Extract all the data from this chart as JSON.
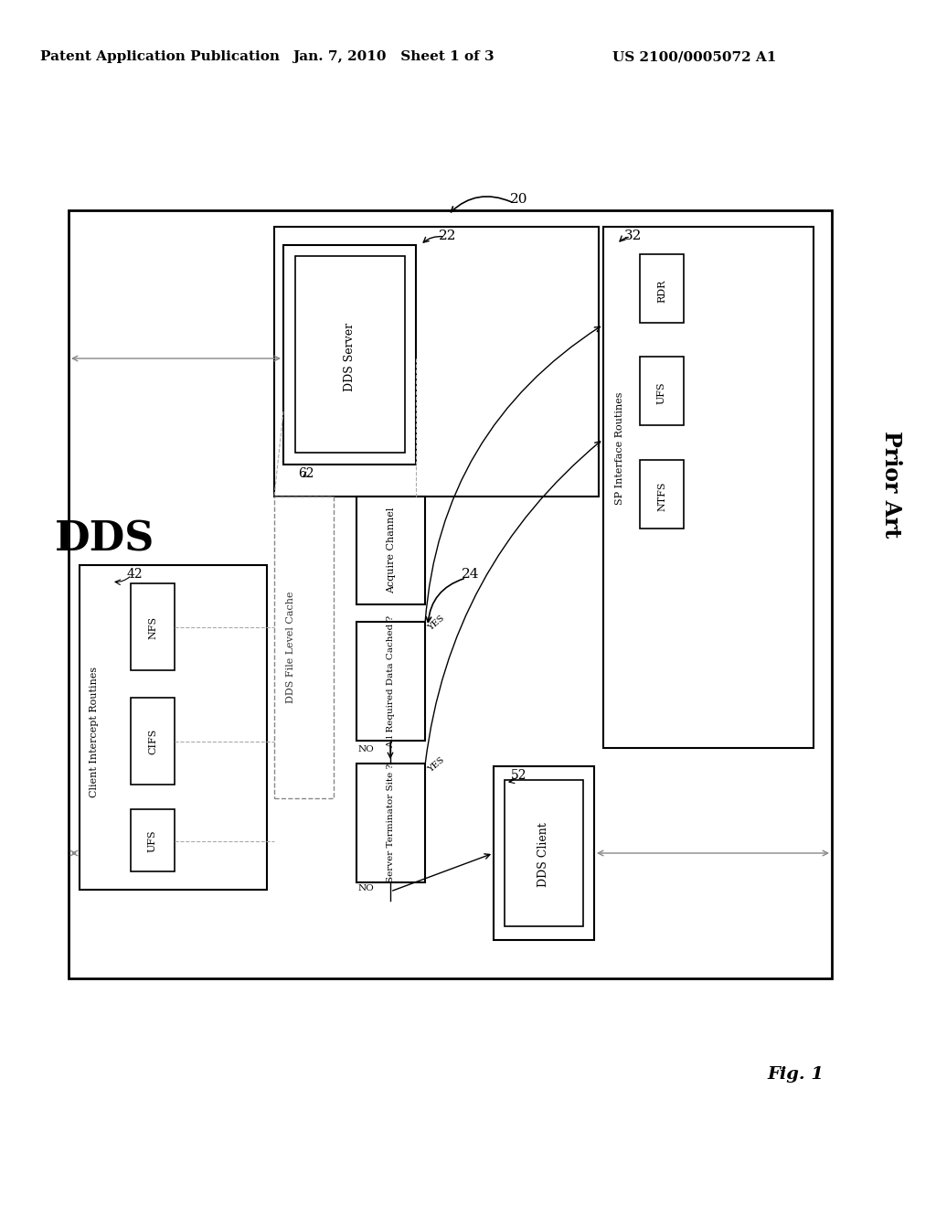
{
  "bg_color": "#ffffff",
  "header_left": "Patent Application Publication",
  "header_mid": "Jan. 7, 2010   Sheet 1 of 3",
  "header_right": "US 2100/0005072 A1",
  "fig_label": "Fig. 1",
  "prior_art": "Prior Art",
  "dds_label": "DDS",
  "diagram_num": "20",
  "box22_label": "22",
  "box32_label": "32",
  "box42_label": "42",
  "box52_label": "52",
  "box62_label": "62",
  "dds_server_label": "DDS Server",
  "dds_file_cache_label": "DDS File Level Cache",
  "acquire_channel_label": "Acquire Channel",
  "all_req_cached_label": "All Required Data Cached ?",
  "server_terminator_label": "Server Terminator Site ?",
  "dds_client_label": "DDS Client",
  "client_intercept_label": "Client Intercept Routines",
  "sp_interface_label": "SP Interface Routines",
  "nfs_label": "NFS",
  "cifs_label": "CIFS",
  "ufs_label_left": "UFS",
  "rdr_label": "RDR",
  "ufs_label_right": "UFS",
  "ntfs_label": "NTFS",
  "yes1_label": "YES",
  "yes2_label": "YES",
  "no1_label": "NO",
  "no2_label": "NO",
  "label24": "24"
}
